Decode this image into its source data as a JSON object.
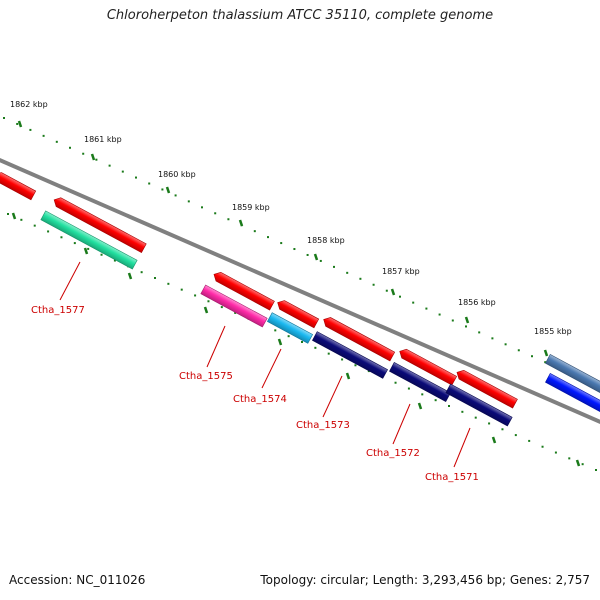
{
  "title": "Chloroherpeton thalassium ATCC 35110, complete genome",
  "colors": {
    "backbone": "#808080",
    "ticks": "#1a7a1a",
    "gene_label": "#cc0000",
    "forward_strand": "#ff0000",
    "background": "#ffffff"
  },
  "ticks": [
    {
      "label": "1862 kbp"
    },
    {
      "label": "1861 kbp"
    },
    {
      "label": "1860 kbp"
    },
    {
      "label": "1859 kbp"
    },
    {
      "label": "1858 kbp"
    },
    {
      "label": "1857 kbp"
    },
    {
      "label": "1856 kbp"
    },
    {
      "label": "1855 kbp"
    }
  ],
  "forward_features": [
    {
      "color": "#ff0000"
    },
    {
      "color": "#ff0000"
    },
    {
      "color": "#ff0000"
    },
    {
      "color": "#ff0000"
    },
    {
      "color": "#ff0000"
    },
    {
      "color": "#ff0000"
    },
    {
      "color": "#ff0000"
    },
    {
      "color": "#4a78b0"
    }
  ],
  "genes": [
    {
      "label": "Ctha_1577",
      "color": "#22e0a0"
    },
    {
      "label": "Ctha_1575",
      "color": "#ff2aa8"
    },
    {
      "label": "Ctha_1574",
      "color": "#1ab8f0"
    },
    {
      "label": "Ctha_1573",
      "color": "#0a0a78"
    },
    {
      "label": "Ctha_1572",
      "color": "#0a0a78"
    },
    {
      "label": "Ctha_1571",
      "color": "#0a0a78"
    },
    {
      "label": "",
      "color": "#0018ff"
    }
  ],
  "footer": {
    "accession": "Accession: NC_011026",
    "summary": "Topology: circular; Length: 3,293,456 bp; Genes: 2,757"
  }
}
